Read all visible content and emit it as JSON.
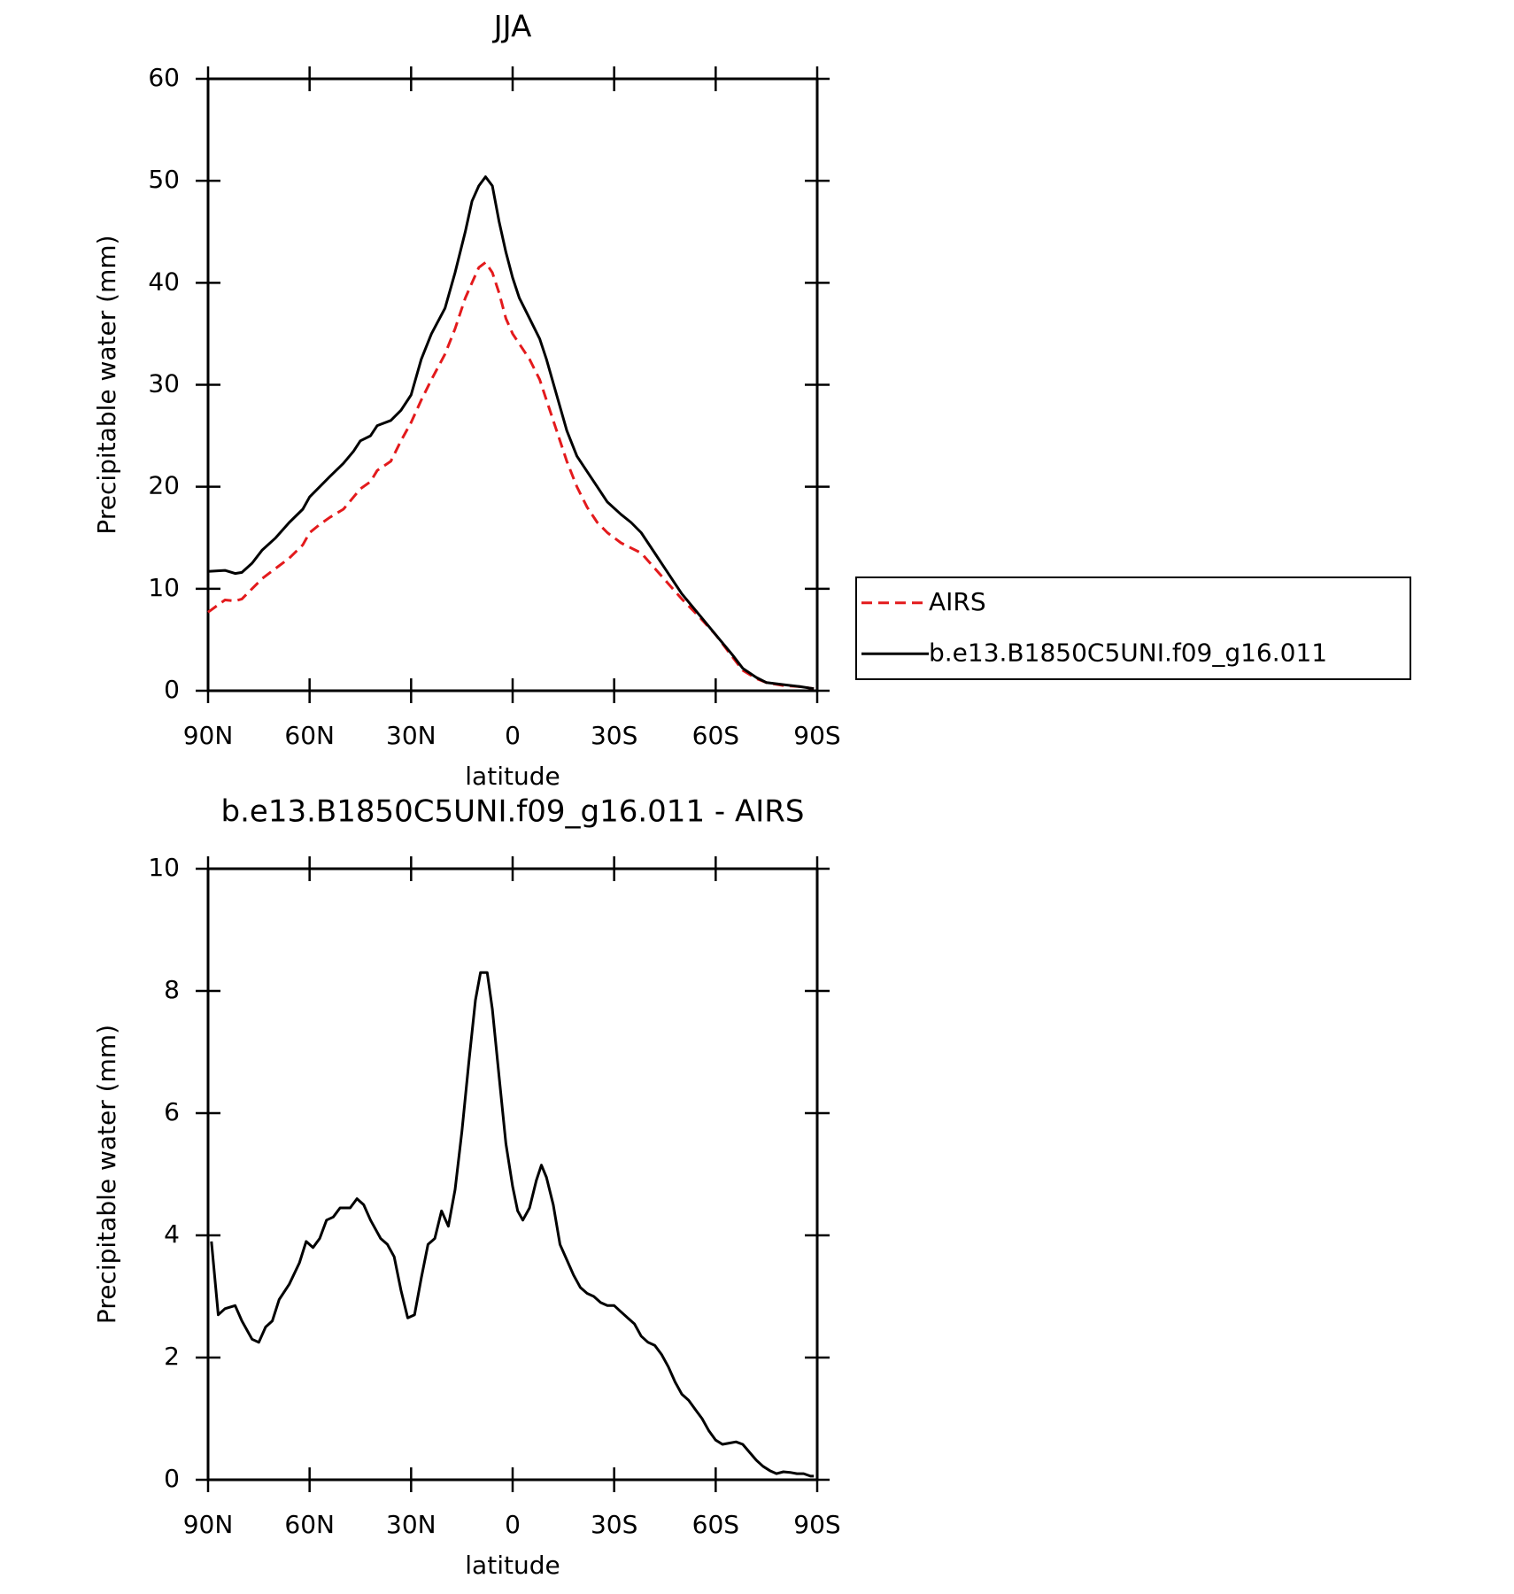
{
  "chart_data": [
    {
      "type": "line",
      "title": "JJA",
      "xlabel": "latitude",
      "ylabel": "Precipitable water (mm)",
      "x": [
        90,
        85,
        82,
        80,
        77,
        74,
        70,
        66,
        62,
        60,
        57,
        54,
        50,
        47,
        45,
        42,
        40,
        36,
        33,
        30,
        27,
        24,
        20,
        17,
        14,
        12,
        10,
        8,
        6,
        4,
        2,
        0,
        -2,
        -5,
        -8,
        -10,
        -13,
        -16,
        -19,
        -22,
        -25,
        -28,
        -32,
        -35,
        -38,
        -42,
        -46,
        -50,
        -55,
        -60,
        -65,
        -68,
        -72,
        -75,
        -80,
        -85,
        -89
      ],
      "series": [
        {
          "name": "AIRS",
          "color": "#e31a1c",
          "style": "dashed",
          "values": [
            7.7,
            8.9,
            8.8,
            9,
            10,
            11,
            12,
            13,
            14.3,
            15.5,
            16.3,
            17,
            17.8,
            19,
            19.8,
            20.5,
            21.6,
            22.5,
            24.5,
            26.3,
            28.5,
            30.5,
            33,
            35.5,
            38.5,
            40,
            41.5,
            42,
            41,
            39,
            36.5,
            35,
            34,
            32.5,
            30.5,
            28.5,
            25.5,
            22.5,
            20,
            18,
            16.5,
            15.5,
            14.5,
            14,
            13.5,
            12,
            10.5,
            9,
            7.3,
            5.5,
            3.3,
            2,
            1.2,
            0.8,
            0.5,
            0.4,
            0.2
          ]
        },
        {
          "name": "b.e13.B1850C5UNI.f09_g16.011",
          "color": "#000000",
          "style": "solid",
          "values": [
            11.7,
            11.8,
            11.5,
            11.6,
            12.5,
            13.8,
            15,
            16.5,
            17.8,
            19,
            20,
            21,
            22.3,
            23.5,
            24.5,
            25,
            26,
            26.5,
            27.5,
            29,
            32.5,
            35,
            37.5,
            41,
            45,
            48,
            49.5,
            50.4,
            49.5,
            46,
            43,
            40.5,
            38.5,
            36.5,
            34.5,
            32.5,
            29,
            25.5,
            23,
            21.5,
            20,
            18.5,
            17.3,
            16.5,
            15.5,
            13.5,
            11.5,
            9.5,
            7.5,
            5.5,
            3.5,
            2.2,
            1.3,
            0.8,
            0.6,
            0.4,
            0.2
          ]
        }
      ],
      "xlim": [
        90,
        -90
      ],
      "xticks": [
        {
          "value": 90,
          "label": "90N"
        },
        {
          "value": 60,
          "label": "60N"
        },
        {
          "value": 30,
          "label": "30N"
        },
        0,
        {
          "value": -30,
          "label": "30S"
        },
        {
          "value": -60,
          "label": "60S"
        },
        {
          "value": -90,
          "label": "90S"
        }
      ],
      "ylim": [
        0,
        60
      ],
      "yticks": [
        0,
        10,
        20,
        30,
        40,
        50,
        60
      ],
      "legend": "right"
    },
    {
      "type": "line",
      "title": "b.e13.B1850C5UNI.f09_g16.011 - AIRS",
      "xlabel": "latitude",
      "ylabel": "Precipitable water (mm)",
      "x": [
        89,
        87,
        85,
        82,
        80,
        77,
        75,
        73,
        71,
        69,
        66,
        63,
        61,
        59,
        57,
        55,
        53,
        51,
        48,
        46,
        44,
        42,
        39,
        37,
        35,
        33,
        31,
        29,
        27,
        25,
        23,
        21,
        19,
        17,
        15,
        13,
        11,
        9.5,
        7.5,
        6,
        4,
        2,
        0,
        -1.5,
        -3,
        -5,
        -7,
        -8.5,
        -10,
        -12,
        -14,
        -16,
        -18,
        -20,
        -22,
        -24,
        -26,
        -28,
        -30,
        -32,
        -34,
        -36,
        -38,
        -40,
        -42,
        -44,
        -46,
        -48,
        -50,
        -52,
        -54,
        -56,
        -58,
        -60,
        -62,
        -64,
        -66,
        -68,
        -70,
        -72,
        -74,
        -76,
        -78,
        -80,
        -82,
        -84,
        -86,
        -88,
        -89
      ],
      "series": [
        {
          "color": "#000000",
          "style": "solid",
          "values": [
            3.9,
            2.7,
            2.8,
            2.85,
            2.6,
            2.3,
            2.25,
            2.5,
            2.6,
            2.95,
            3.2,
            3.55,
            3.9,
            3.8,
            3.95,
            4.25,
            4.3,
            4.45,
            4.45,
            4.6,
            4.5,
            4.25,
            3.95,
            3.85,
            3.65,
            3.1,
            2.65,
            2.7,
            3.3,
            3.85,
            3.95,
            4.4,
            4.15,
            4.75,
            5.7,
            6.8,
            7.85,
            8.3,
            8.3,
            7.7,
            6.6,
            5.5,
            4.8,
            4.4,
            4.25,
            4.45,
            4.9,
            5.15,
            4.95,
            4.5,
            3.85,
            3.6,
            3.35,
            3.15,
            3.05,
            3,
            2.9,
            2.85,
            2.85,
            2.75,
            2.65,
            2.55,
            2.35,
            2.25,
            2.2,
            2.05,
            1.85,
            1.6,
            1.4,
            1.3,
            1.15,
            1,
            0.8,
            0.65,
            0.58,
            0.6,
            0.62,
            0.58,
            0.45,
            0.32,
            0.22,
            0.15,
            0.1,
            0.13,
            0.12,
            0.1,
            0.1,
            0.06,
            0.06
          ]
        }
      ],
      "xlim": [
        90,
        -90
      ],
      "xticks": [
        {
          "value": 90,
          "label": "90N"
        },
        {
          "value": 60,
          "label": "60N"
        },
        {
          "value": 30,
          "label": "30N"
        },
        0,
        {
          "value": -30,
          "label": "30S"
        },
        {
          "value": -60,
          "label": "60S"
        },
        {
          "value": -90,
          "label": "90S"
        }
      ],
      "ylim": [
        0,
        10
      ],
      "yticks": [
        0,
        2,
        4,
        6,
        8,
        10
      ]
    }
  ]
}
